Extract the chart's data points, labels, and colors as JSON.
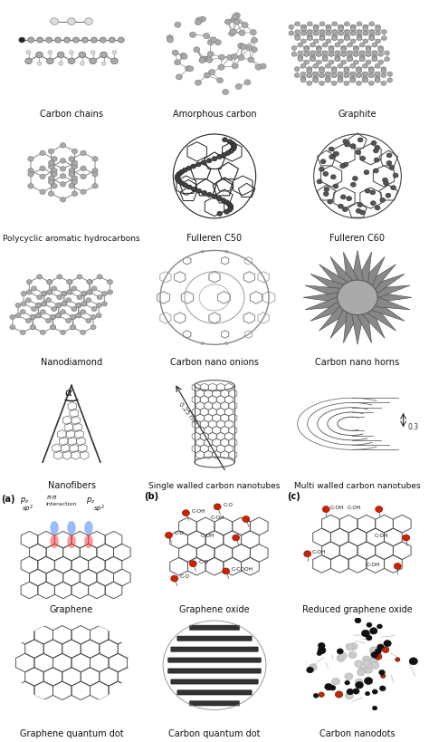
{
  "background_color": "#ffffff",
  "label_fontsize": 7.0,
  "fig_width": 4.74,
  "fig_height": 8.2,
  "dpi": 100,
  "rows": 6,
  "cols": 3,
  "labels": [
    [
      "Carbon chains",
      "Amorphous carbon",
      "Graphite"
    ],
    [
      "Polycyclic aromatic hydrocarbons",
      "Fulleren C50",
      "Fulleren C60"
    ],
    [
      "Nanodiamond",
      "Carbon nano onions",
      "Carbon nano horns"
    ],
    [
      "Nanofibers",
      "Single walled carbon nanotubes",
      "Multi walled carbon nanotubes"
    ],
    [
      "Graphene",
      "Graphene oxide",
      "Reduced graphene oxide"
    ],
    [
      "Graphene quantum dot",
      "Carbon quantum dot",
      "Carbon nanodots"
    ]
  ],
  "atom_gray": "#aaaaaa",
  "atom_dark": "#555555",
  "atom_light": "#dddddd",
  "bond_color": "#777777",
  "dark_atom": "#222222",
  "red_atom": "#cc2200",
  "line_color": "#666666"
}
